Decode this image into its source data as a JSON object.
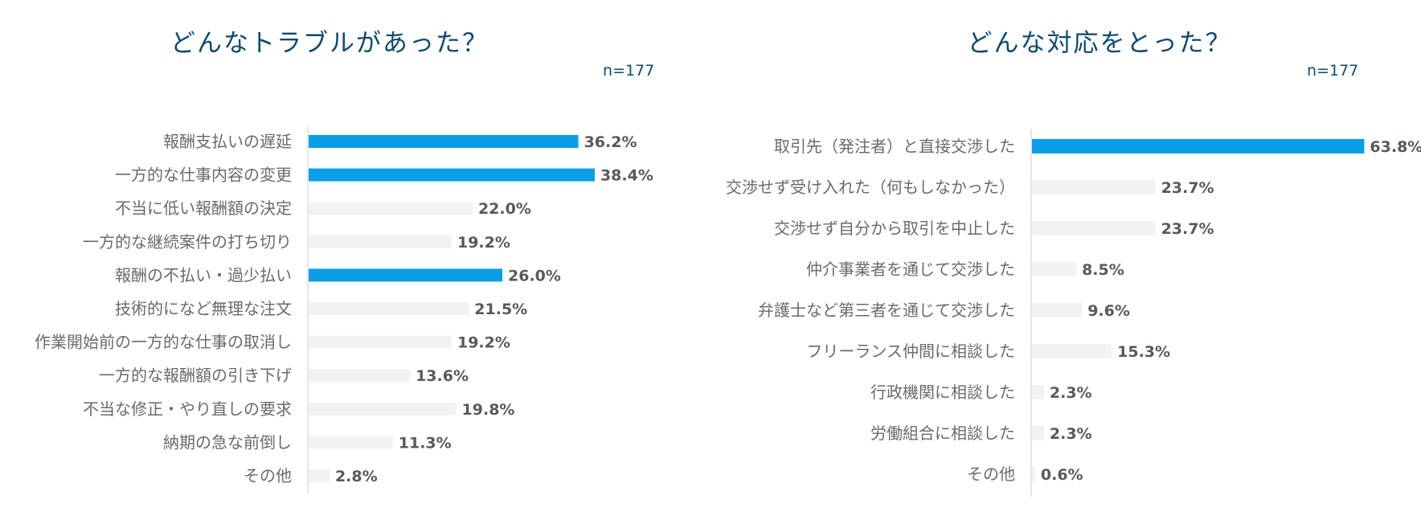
{
  "colors": {
    "highlight": "#0a9ee8",
    "normal": "#f2f2f2",
    "axis": "#cfcfcf",
    "title": "#0d4a73"
  },
  "chart_data": [
    {
      "type": "bar",
      "orientation": "horizontal",
      "title": "どんなトラブルがあった？",
      "sample_size": "n=177",
      "unit": "%",
      "xlim": [
        0,
        40
      ],
      "categories": [
        "報酬支払いの遅延",
        "一方的な仕事内容の変更",
        "不当に低い報酬額の決定",
        "一方的な継続案件の打ち切り",
        "報酬の不払い・過少払い",
        "技術的になど無理な注文",
        "作業開始前の一方的な仕事の取消し",
        "一方的な報酬額の引き下げ",
        "不当な修正・やり直しの要求",
        "納期の急な前倒し",
        "その他"
      ],
      "values": [
        36.2,
        38.4,
        22.0,
        19.2,
        26.0,
        21.5,
        19.2,
        13.6,
        19.8,
        11.3,
        2.8
      ],
      "value_labels": [
        "36.2%",
        "38.4%",
        "22.0%",
        "19.2%",
        "26.0%",
        "21.5%",
        "19.2%",
        "13.6%",
        "19.8%",
        "11.3%",
        "2.8%"
      ],
      "highlighted": [
        true,
        true,
        false,
        false,
        true,
        false,
        false,
        false,
        false,
        false,
        false
      ]
    },
    {
      "type": "bar",
      "orientation": "horizontal",
      "title": "どんな対応をとった？",
      "sample_size": "n=177",
      "unit": "%",
      "xlim": [
        0,
        70
      ],
      "categories": [
        "取引先（発注者）と直接交渉した",
        "交渉せず受け入れた（何もしなかった）",
        "交渉せず自分から取引を中止した",
        "仲介事業者を通じて交渉した",
        "弁護士など第三者を通じて交渉した",
        "フリーランス仲間に相談した",
        "行政機関に相談した",
        "労働組合に相談した",
        "その他"
      ],
      "values": [
        63.8,
        23.7,
        23.7,
        8.5,
        9.6,
        15.3,
        2.3,
        2.3,
        0.6
      ],
      "value_labels": [
        "63.8%",
        "23.7%",
        "23.7%",
        "8.5%",
        "9.6%",
        "15.3%",
        "2.3%",
        "2.3%",
        "0.6%"
      ],
      "highlighted": [
        true,
        false,
        false,
        false,
        false,
        false,
        false,
        false,
        false
      ]
    }
  ]
}
